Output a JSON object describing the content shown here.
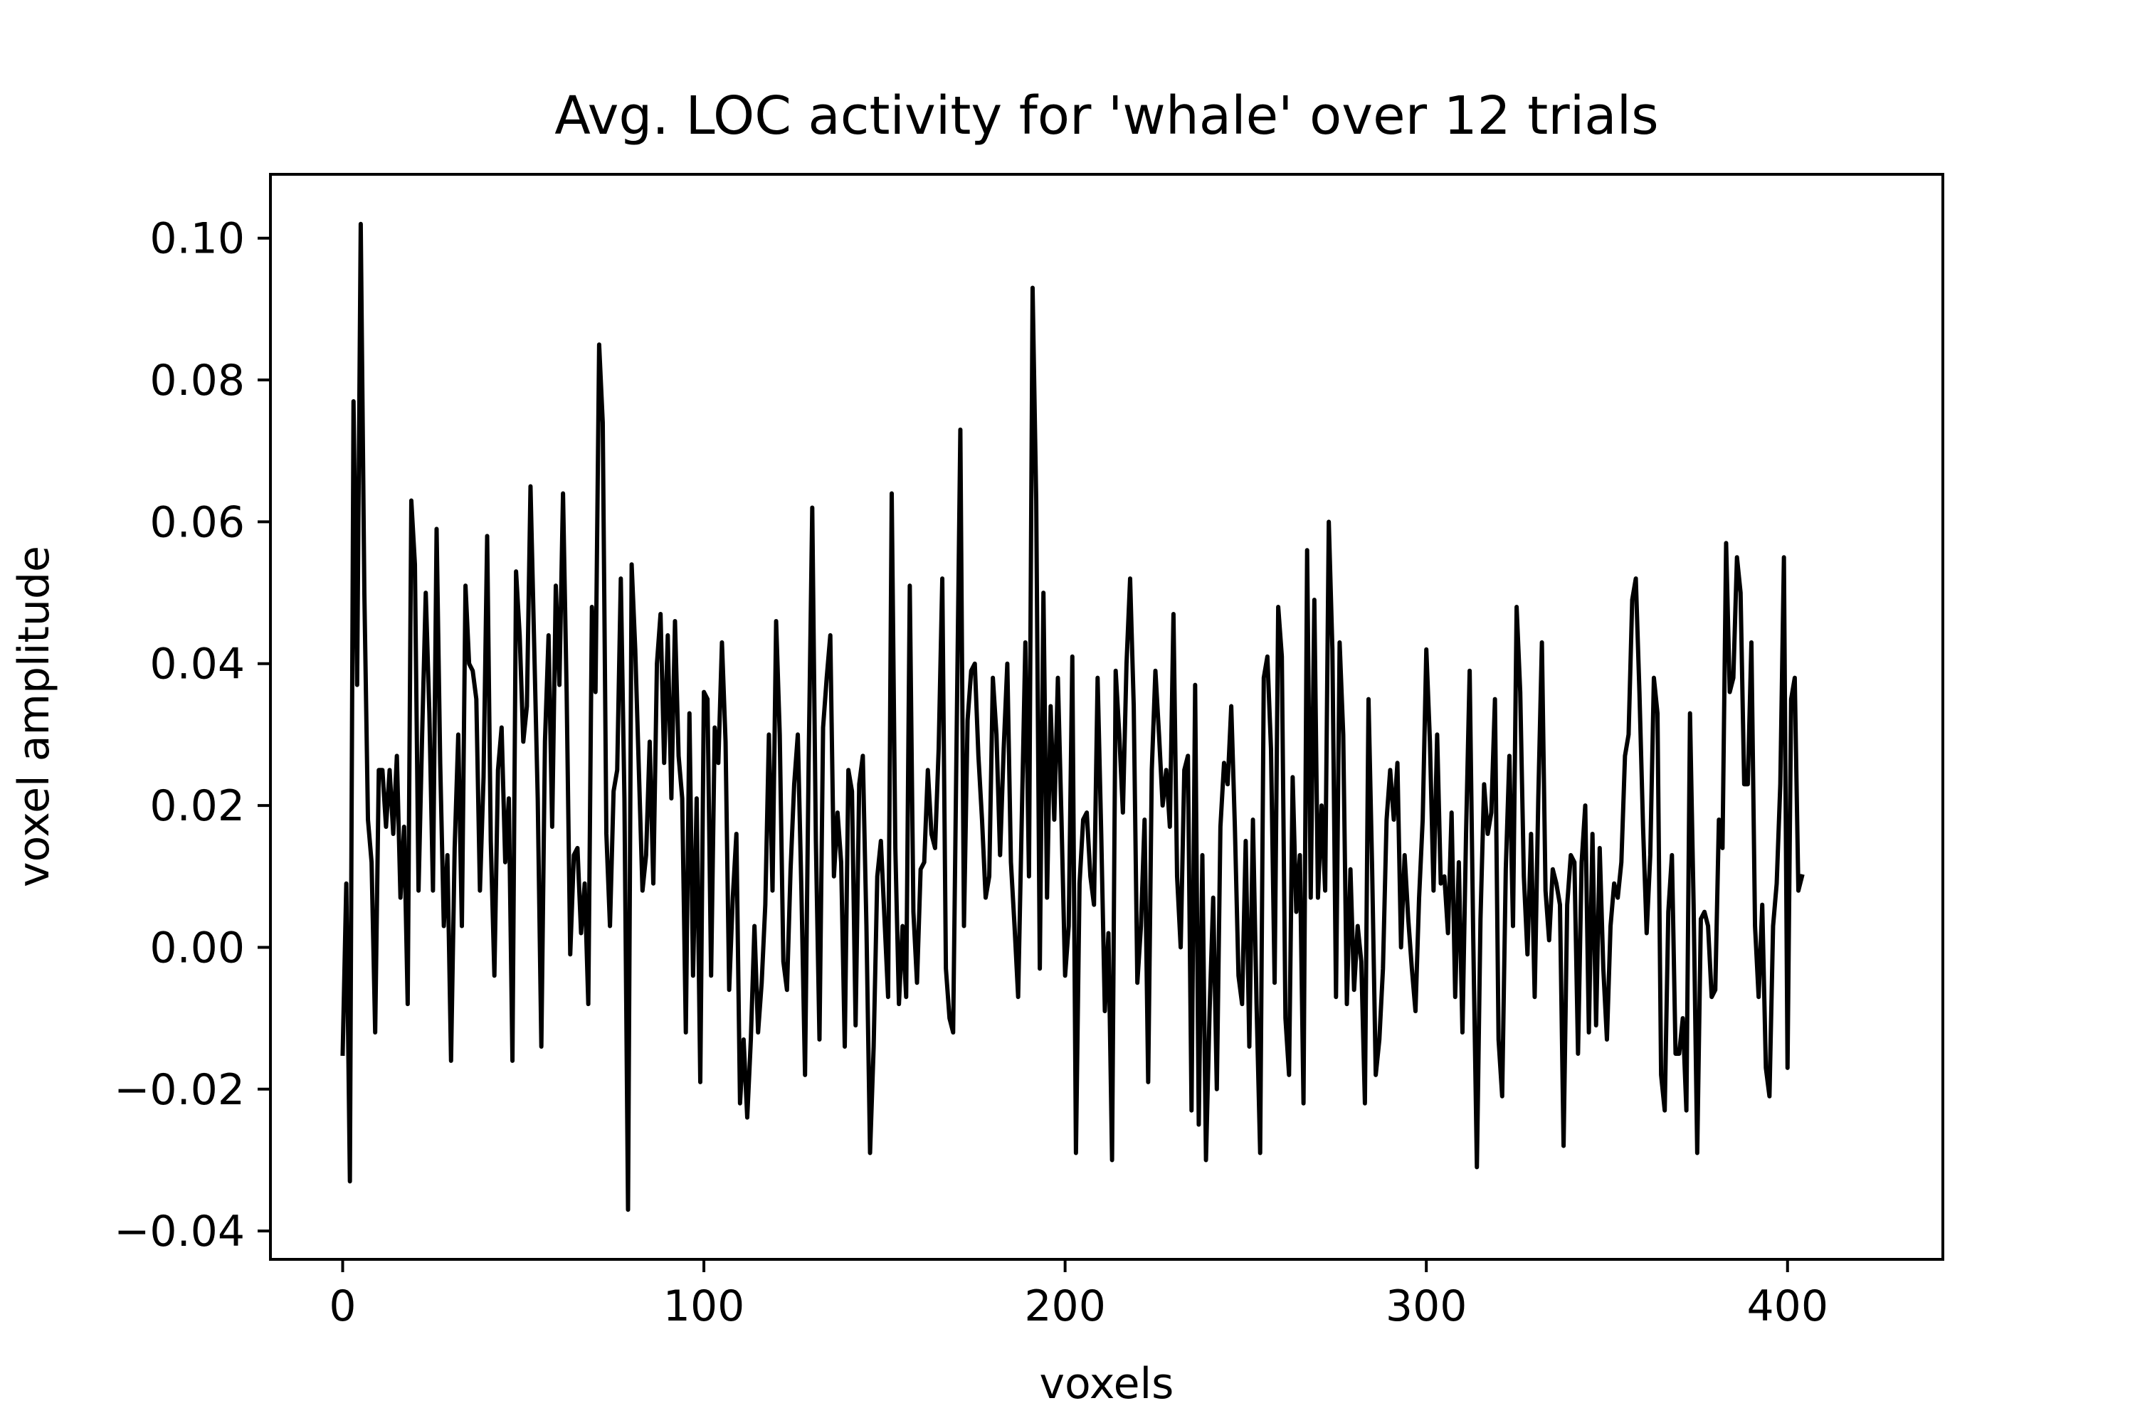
{
  "chart_data": {
    "type": "line",
    "title": "Avg. LOC activity for 'whale' over 12 trials",
    "xlabel": "voxels",
    "ylabel": "voxel amplitude",
    "xlim": [
      -20,
      443
    ],
    "ylim": [
      -0.044,
      0.109
    ],
    "xticks": [
      0,
      100,
      200,
      300,
      400
    ],
    "xtick_labels": [
      "0",
      "100",
      "200",
      "300",
      "400"
    ],
    "yticks": [
      -0.04,
      -0.02,
      0.0,
      0.02,
      0.04,
      0.06,
      0.08,
      0.1
    ],
    "ytick_labels": [
      "−0.04",
      "−0.02",
      "0.00",
      "0.02",
      "0.04",
      "0.06",
      "0.08",
      "0.10"
    ],
    "grid": false,
    "legend": "none",
    "line_color": "#000000",
    "series": [
      {
        "values": [
          -0.015,
          0.009,
          -0.033,
          0.077,
          0.037,
          0.102,
          0.05,
          0.018,
          0.012,
          -0.012,
          0.025,
          0.025,
          0.017,
          0.025,
          0.016,
          0.027,
          0.007,
          0.017,
          -0.008,
          0.063,
          0.054,
          0.008,
          0.03,
          0.05,
          0.033,
          0.008,
          0.059,
          0.026,
          0.003,
          0.013,
          -0.016,
          0.014,
          0.03,
          0.003,
          0.051,
          0.04,
          0.039,
          0.035,
          0.008,
          0.024,
          0.058,
          0.015,
          -0.004,
          0.025,
          0.031,
          0.012,
          0.021,
          -0.016,
          0.053,
          0.044,
          0.029,
          0.034,
          0.065,
          0.043,
          0.021,
          -0.014,
          0.029,
          0.044,
          0.017,
          0.051,
          0.037,
          0.064,
          0.036,
          -0.001,
          0.013,
          0.014,
          0.002,
          0.009,
          -0.008,
          0.048,
          0.036,
          0.085,
          0.074,
          0.016,
          0.003,
          0.022,
          0.025,
          0.052,
          0.021,
          -0.037,
          0.054,
          0.042,
          0.025,
          0.008,
          0.013,
          0.029,
          0.009,
          0.04,
          0.047,
          0.026,
          0.044,
          0.021,
          0.046,
          0.027,
          0.021,
          -0.012,
          0.033,
          -0.004,
          0.021,
          -0.019,
          0.036,
          0.035,
          -0.004,
          0.031,
          0.026,
          0.043,
          0.029,
          -0.006,
          0.007,
          0.016,
          -0.022,
          -0.013,
          -0.024,
          -0.013,
          0.003,
          -0.012,
          -0.005,
          0.006,
          0.03,
          0.008,
          0.046,
          0.03,
          -0.002,
          -0.006,
          0.011,
          0.023,
          0.03,
          0.008,
          -0.018,
          0.026,
          0.062,
          0.015,
          -0.013,
          0.031,
          0.038,
          0.044,
          0.01,
          0.019,
          0.012,
          -0.014,
          0.025,
          0.022,
          -0.011,
          0.023,
          0.027,
          0.003,
          -0.029,
          -0.014,
          0.01,
          0.015,
          0.004,
          -0.007,
          0.064,
          0.014,
          -0.008,
          0.003,
          -0.007,
          0.051,
          0.005,
          -0.005,
          0.011,
          0.012,
          0.025,
          0.016,
          0.014,
          0.028,
          0.052,
          -0.003,
          -0.01,
          -0.012,
          0.031,
          0.073,
          0.003,
          0.032,
          0.039,
          0.04,
          0.027,
          0.018,
          0.007,
          0.01,
          0.038,
          0.03,
          0.013,
          0.028,
          0.04,
          0.012,
          0.003,
          -0.007,
          0.018,
          0.043,
          0.01,
          0.093,
          0.063,
          -0.003,
          0.05,
          0.007,
          0.034,
          0.018,
          0.038,
          0.018,
          -0.004,
          0.003,
          0.041,
          -0.029,
          0.009,
          0.018,
          0.019,
          0.01,
          0.006,
          0.038,
          0.016,
          -0.009,
          0.002,
          -0.03,
          0.039,
          0.03,
          0.019,
          0.04,
          0.052,
          0.034,
          -0.005,
          0.003,
          0.018,
          -0.019,
          0.025,
          0.039,
          0.03,
          0.02,
          0.025,
          0.017,
          0.047,
          0.01,
          0.0,
          0.025,
          0.027,
          -0.023,
          0.037,
          -0.025,
          0.013,
          -0.03,
          -0.009,
          0.007,
          -0.02,
          0.017,
          0.026,
          0.023,
          0.034,
          0.017,
          -0.004,
          -0.008,
          0.015,
          -0.014,
          0.018,
          -0.008,
          -0.029,
          0.038,
          0.041,
          0.028,
          -0.005,
          0.048,
          0.041,
          -0.01,
          -0.018,
          0.024,
          0.005,
          0.013,
          -0.022,
          0.056,
          0.007,
          0.049,
          0.007,
          0.02,
          0.008,
          0.06,
          0.042,
          -0.007,
          0.043,
          0.03,
          -0.008,
          0.011,
          -0.006,
          0.003,
          -0.002,
          -0.022,
          0.035,
          0.011,
          -0.018,
          -0.013,
          -0.003,
          0.018,
          0.025,
          0.018,
          0.026,
          0.0,
          0.013,
          0.004,
          -0.003,
          -0.009,
          0.007,
          0.018,
          0.042,
          0.029,
          0.008,
          0.03,
          0.009,
          0.01,
          0.002,
          0.019,
          -0.007,
          0.012,
          -0.012,
          0.016,
          0.039,
          0.001,
          -0.031,
          0.004,
          0.023,
          0.016,
          0.019,
          0.035,
          -0.013,
          -0.021,
          0.011,
          0.027,
          0.003,
          0.048,
          0.036,
          0.01,
          -0.001,
          0.016,
          -0.007,
          0.021,
          0.043,
          0.008,
          0.001,
          0.011,
          0.009,
          0.006,
          -0.028,
          0.006,
          0.013,
          0.012,
          -0.015,
          0.012,
          0.02,
          -0.012,
          0.016,
          -0.011,
          0.014,
          -0.003,
          -0.013,
          0.003,
          0.009,
          0.007,
          0.012,
          0.027,
          0.03,
          0.049,
          0.052,
          0.036,
          0.017,
          0.002,
          0.013,
          0.038,
          0.033,
          -0.018,
          -0.023,
          0.005,
          0.013,
          -0.015,
          -0.015,
          -0.01,
          -0.023,
          0.033,
          0.006,
          -0.029,
          0.004,
          0.005,
          0.003,
          -0.007,
          -0.006,
          0.018,
          0.014,
          0.057,
          0.036,
          0.038,
          0.055,
          0.05,
          0.023,
          0.023,
          0.043,
          0.003,
          -0.007,
          0.006,
          -0.017,
          -0.021,
          0.003,
          0.009,
          0.023,
          0.055,
          -0.017,
          0.035,
          0.038,
          0.008,
          0.01
        ]
      }
    ]
  }
}
